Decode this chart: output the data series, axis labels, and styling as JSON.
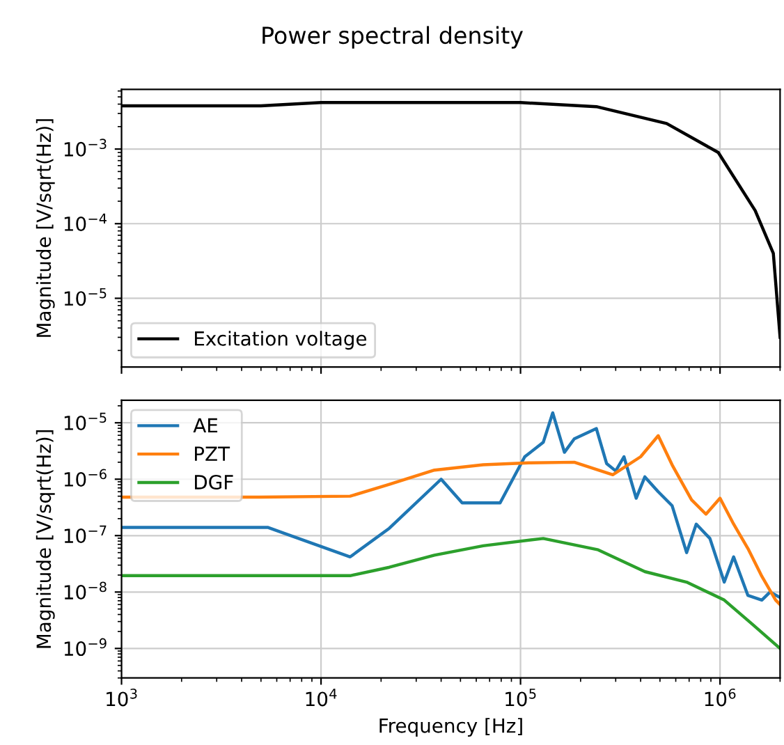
{
  "chart_data": [
    {
      "type": "line",
      "title": "Power spectral density",
      "ylabel": "Magnitude [V/sqrt(Hz)]",
      "log": "xy",
      "grid": true,
      "legend": "lower left",
      "tick_labels": "y",
      "xlim": [
        1000,
        2000000
      ],
      "xticks": [
        {
          "value": 1000,
          "label": null
        },
        {
          "value": 10000,
          "label": null
        },
        {
          "value": 100000,
          "label": null
        },
        {
          "value": 1000000,
          "label": null
        }
      ],
      "ylim": [
        1.2e-06,
        0.0063
      ],
      "yticks": [
        {
          "value": 0.001,
          "label": "10$^{−3}$"
        },
        {
          "value": 0.0001,
          "label": "10$^{−4}$"
        },
        {
          "value": 1e-05,
          "label": "10$^{−5}$"
        }
      ],
      "series": [
        {
          "name": "Excitation voltage",
          "color": "#000000",
          "x": [
            1000,
            5000,
            10000,
            100000,
            240000,
            540000,
            980000,
            1500000,
            1850000,
            2000000
          ],
          "values": [
            0.0038,
            0.0038,
            0.0042,
            0.0042,
            0.0037,
            0.0022,
            0.0009,
            0.00015,
            4e-05,
            3e-06
          ]
        }
      ]
    },
    {
      "type": "line",
      "xlabel": "Frequency [Hz]",
      "ylabel": "Magnitude [V/sqrt(Hz)]",
      "log": "xy",
      "grid": true,
      "legend": "top left",
      "xlim": [
        1000,
        2000000
      ],
      "xticks": [
        {
          "value": 1000,
          "label": "10$^{3}$"
        },
        {
          "value": 10000,
          "label": "10$^{4}$"
        },
        {
          "value": 100000,
          "label": "10$^{5}$"
        },
        {
          "value": 1000000,
          "label": "10$^{6}$"
        }
      ],
      "ylim": [
        3e-10,
        2.5e-05
      ],
      "yticks": [
        {
          "value": 1e-05,
          "label": "10$^{−5}$"
        },
        {
          "value": 1e-06,
          "label": "10$^{−6}$"
        },
        {
          "value": 1e-07,
          "label": "10$^{−7}$"
        },
        {
          "value": 1e-08,
          "label": "10$^{−8}$"
        },
        {
          "value": 1e-09,
          "label": "10$^{−9}$"
        }
      ],
      "series": [
        {
          "name": "AE",
          "color": "#1f77b4",
          "x": [
            1000,
            5400,
            14000,
            22000,
            40000,
            51000,
            79000,
            105000,
            130000,
            145000,
            166000,
            186000,
            240000,
            270000,
            300000,
            330000,
            380000,
            420000,
            490000,
            575000,
            680000,
            760000,
            890000,
            1050000,
            1170000,
            1380000,
            1620000,
            1780000,
            2000000
          ],
          "values": [
            1.4e-07,
            1.4e-07,
            4.2e-08,
            1.35e-07,
            1e-06,
            3.8e-07,
            3.8e-07,
            2.5e-06,
            4.5e-06,
            1.5e-05,
            3e-06,
            5.2e-06,
            7.9e-06,
            1.9e-06,
            1.4e-06,
            2.5e-06,
            4.6e-07,
            1.1e-06,
            6e-07,
            3.4e-07,
            5e-08,
            1.6e-07,
            8.9e-08,
            1.5e-08,
            4.2e-08,
            8.7e-09,
            7.2e-09,
            1e-08,
            8e-09
          ]
        },
        {
          "name": "PZT",
          "color": "#ff7f0e",
          "x": [
            1000,
            4900,
            14000,
            22000,
            37000,
            65000,
            110000,
            186000,
            290000,
            400000,
            490000,
            575000,
            720000,
            850000,
            1000000,
            1170000,
            1380000,
            1620000,
            1900000,
            2000000
          ],
          "values": [
            4.8e-07,
            4.8e-07,
            5e-07,
            8.1e-07,
            1.45e-06,
            1.8e-06,
            1.95e-06,
            2e-06,
            1.2e-06,
            2.5e-06,
            5.9e-06,
            1.8e-06,
            4.3e-07,
            2.4e-07,
            4.6e-07,
            1.6e-07,
            5.9e-08,
            1.9e-08,
            7.2e-09,
            6e-09
          ]
        },
        {
          "name": "DGF",
          "color": "#2ca02c",
          "x": [
            1000,
            14000,
            22000,
            37000,
            65000,
            130000,
            245000,
            420000,
            680000,
            1050000,
            1450000,
            2000000
          ],
          "values": [
            1.95e-08,
            1.95e-08,
            2.75e-08,
            4.5e-08,
            6.6e-08,
            8.9e-08,
            5.6e-08,
            2.3e-08,
            1.5e-08,
            7.2e-09,
            2.7e-09,
            1e-09
          ]
        }
      ]
    }
  ]
}
